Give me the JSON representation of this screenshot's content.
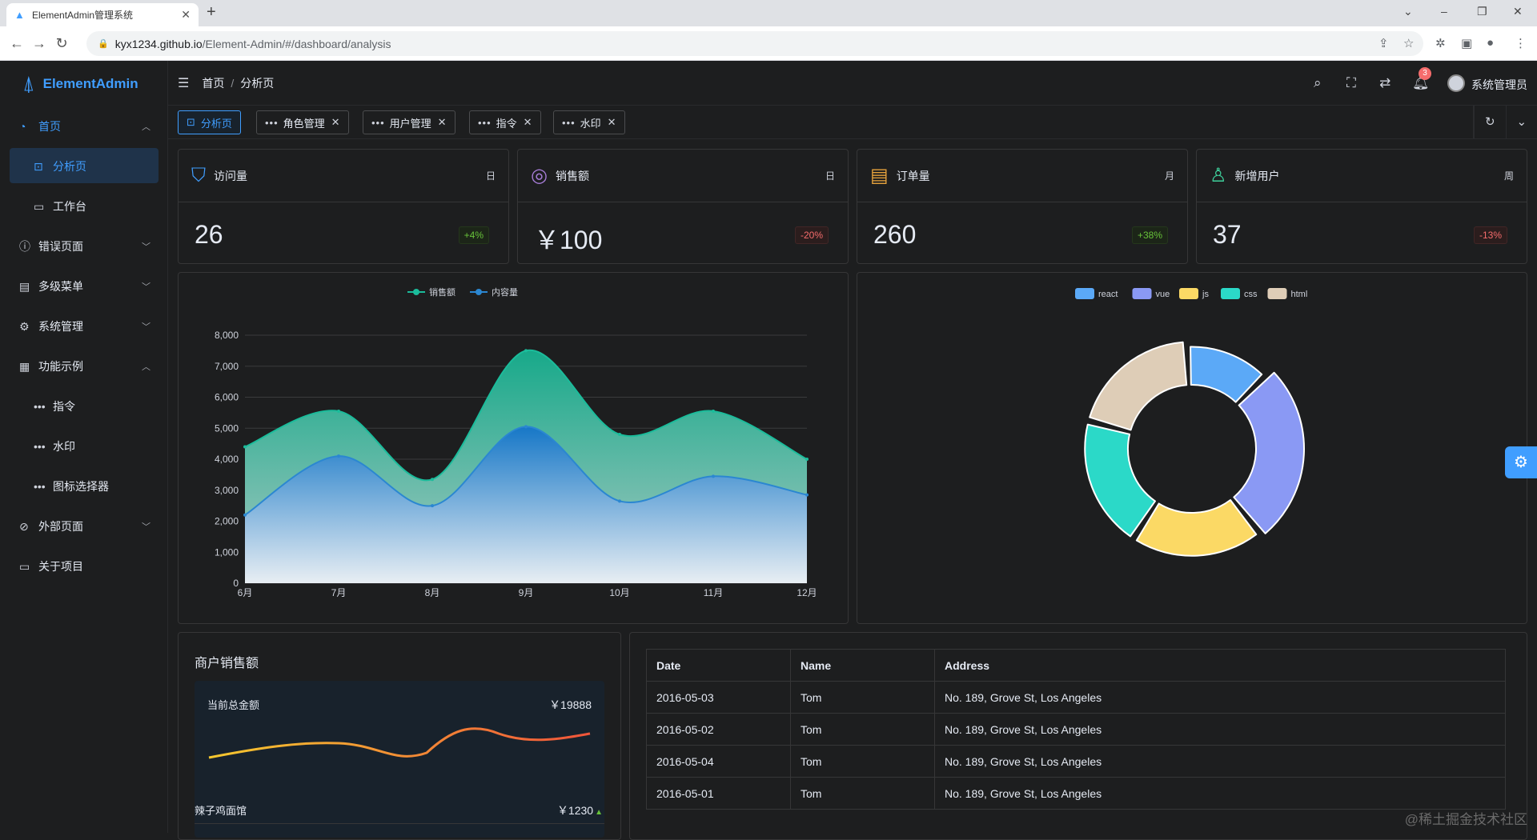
{
  "browser": {
    "tab_title": "ElementAdmin管理系统",
    "tab_close": "✕",
    "new_tab": "+",
    "url_host": "kyx1234.github.io",
    "url_path": "/Element-Admin/#/dashboard/analysis"
  },
  "app": {
    "brand": "ElementAdmin",
    "breadcrumb": [
      "首页",
      "分析页"
    ],
    "breadcrumb_sep": "/",
    "notification_count": "3",
    "username": "系统管理员"
  },
  "sidebar": {
    "items": [
      {
        "label": "首页",
        "icon": "dashboard-icon"
      },
      {
        "label": "分析页",
        "icon": "analysis-icon"
      },
      {
        "label": "工作台",
        "icon": "monitor-icon"
      },
      {
        "label": "错误页面",
        "icon": "warning-icon"
      },
      {
        "label": "多级菜单",
        "icon": "document-icon"
      },
      {
        "label": "系统管理",
        "icon": "settings-icon"
      },
      {
        "label": "功能示例",
        "icon": "tools-icon"
      },
      {
        "label": "指令",
        "icon": "more-icon"
      },
      {
        "label": "水印",
        "icon": "more-icon"
      },
      {
        "label": "图标选择器",
        "icon": "more-icon"
      },
      {
        "label": "外部页面",
        "icon": "link-icon"
      },
      {
        "label": "关于项目",
        "icon": "briefcase-icon"
      }
    ]
  },
  "tags": [
    {
      "label": "分析页",
      "active": true
    },
    {
      "label": "角色管理"
    },
    {
      "label": "用户管理"
    },
    {
      "label": "指令"
    },
    {
      "label": "水印"
    }
  ],
  "stats": [
    {
      "title": "访问量",
      "period": "日",
      "value": "26",
      "change": "+4%",
      "trend": "up",
      "icon_color": "#409eff"
    },
    {
      "title": "销售额",
      "period": "日",
      "value": "￥100",
      "change": "-20%",
      "trend": "down",
      "icon_color": "#a77dd8"
    },
    {
      "title": "订单量",
      "period": "月",
      "value": "260",
      "change": "+38%",
      "trend": "up",
      "icon_color": "#e6a23c"
    },
    {
      "title": "新增用户",
      "period": "周",
      "value": "37",
      "change": "-13%",
      "trend": "down",
      "icon_color": "#3ed09b"
    }
  ],
  "merchant": {
    "title": "商户销售额",
    "total_label": "当前总金额",
    "total_value": "￥19888",
    "shop_name": "辣子鸡面馆",
    "shop_value": "￥1230"
  },
  "table": {
    "headers": [
      "Date",
      "Name",
      "Address"
    ],
    "rows": [
      [
        "2016-05-03",
        "Tom",
        "No. 189, Grove St, Los Angeles"
      ],
      [
        "2016-05-02",
        "Tom",
        "No. 189, Grove St, Los Angeles"
      ],
      [
        "2016-05-04",
        "Tom",
        "No. 189, Grove St, Los Angeles"
      ],
      [
        "2016-05-01",
        "Tom",
        "No. 189, Grove St, Los Angeles"
      ]
    ]
  },
  "watermark": "@稀土掘金技术社区",
  "chart_data": [
    {
      "type": "area",
      "categories": [
        "6月",
        "7月",
        "8月",
        "9月",
        "10月",
        "11月",
        "12月"
      ],
      "series": [
        {
          "name": "销售额",
          "values": [
            4400,
            5550,
            3350,
            7500,
            4800,
            5550,
            4000
          ],
          "color": "#1bbc9b"
        },
        {
          "name": "内容量",
          "values": [
            2200,
            4100,
            2500,
            5050,
            2650,
            3450,
            2850
          ],
          "color": "#2b87d1"
        }
      ],
      "yticks": [
        "0",
        "1,000",
        "2,000",
        "3,000",
        "4,000",
        "5,000",
        "6,000",
        "7,000",
        "8,000"
      ],
      "ylim": [
        0,
        8000
      ],
      "legend": "top-center"
    },
    {
      "type": "pie",
      "style": "rose-donut",
      "legend": "top-center",
      "labels": [
        "react",
        "vue",
        "js",
        "css",
        "html"
      ],
      "colors": [
        "#5ba9f7",
        "#8a99f4",
        "#fbd965",
        "#2bd9c8",
        "#decdb7"
      ],
      "values": [
        2,
        4,
        3,
        3,
        3
      ]
    }
  ]
}
